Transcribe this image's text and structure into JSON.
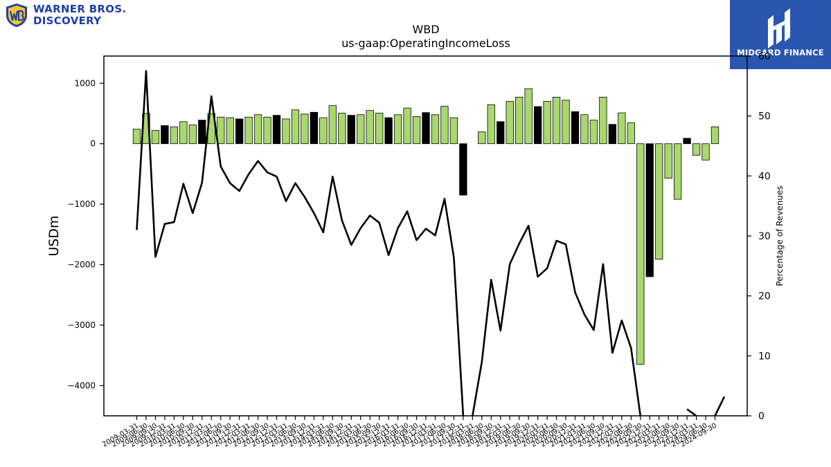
{
  "brand": {
    "company_line1": "WARNER BROS.",
    "company_line2": "DISCOVERY",
    "publisher": "MIDGARD FINANCE"
  },
  "chart_data": {
    "type": "bar",
    "title": "WBD",
    "subtitle": "us-gaap:OperatingIncomeLoss",
    "ylabel": "USDm",
    "y2label": "Percentage of Revenues",
    "ylim": [
      -4500,
      1450
    ],
    "y2lim": [
      0,
      60
    ],
    "yticks": [
      1000,
      0,
      -1000,
      -2000,
      -3000,
      -4000
    ],
    "y2ticks": [
      60,
      50,
      40,
      30,
      20,
      10,
      0
    ],
    "colors": {
      "bar_default": "#a8d86e",
      "bar_highlight": "#000000",
      "line": "#000000",
      "axis": "#000000"
    },
    "categories": [
      "2009-03-31",
      "2009-06-30",
      "2009-09-30",
      "2009-12-31",
      "2010-03-31",
      "2010-06-30",
      "2010-09-30",
      "2010-12-31",
      "2011-03-31",
      "2011-06-30",
      "2011-09-30",
      "2011-12-31",
      "2012-03-31",
      "2012-06-30",
      "2012-09-30",
      "2012-12-31",
      "2013-03-31",
      "2013-06-30",
      "2013-09-30",
      "2013-12-31",
      "2014-03-31",
      "2014-06-30",
      "2014-09-30",
      "2014-12-31",
      "2015-03-31",
      "2015-06-30",
      "2015-09-30",
      "2015-12-31",
      "2016-03-31",
      "2016-06-30",
      "2016-09-30",
      "2016-12-31",
      "2017-03-31",
      "2017-06-30",
      "2017-09-30",
      "2017-12-31",
      "2018-03-31",
      "2018-06-30",
      "2018-09-30",
      "2018-12-31",
      "2019-03-31",
      "2019-06-30",
      "2019-09-30",
      "2019-12-31",
      "2020-03-31",
      "2020-06-30",
      "2020-09-30",
      "2020-12-31",
      "2021-03-31",
      "2021-06-30",
      "2021-09-30",
      "2021-12-31",
      "2022-03-31",
      "2022-06-30",
      "2022-09-30",
      "2022-12-31",
      "2023-03-31",
      "2023-06-30",
      "2023-09-30",
      "2023-12-31",
      "2024-03-31",
      "2024-06-30",
      "2024-09-30"
    ],
    "xtick_labels": [
      "2009-03-31",
      "2009-06-30",
      "2009-09-30",
      "2009-12-31",
      "2010-03-31",
      "2010-06-30",
      "2010-09-30",
      "2010-12-31",
      "2011-03-31",
      "2011-06-30",
      "2011-09-30",
      "2011-12-31",
      "2012-03-31",
      "2012-06-30",
      "2012-09-30",
      "2012-12-31",
      "2013-03-31",
      "2013-06-30",
      "2013-09-30",
      "2013-12-31",
      "2014-03-31",
      "2014-06-30",
      "2014-09-30",
      "2014-12-31",
      "2015-03-31",
      "2015-06-30",
      "2015-09-30",
      "2015-12-31",
      "2016-03-31",
      "2016-06-30",
      "2016-09-30",
      "2016-12-31",
      "2017-03-31",
      "2017-06-30",
      "2017-09-30",
      "2017-12-31",
      "2018-03-31",
      "2018-06-30",
      "2018-09-30",
      "2018-12-31",
      "2019-03-31",
      "2019-06-30",
      "2019-09-30",
      "2019-12-31",
      "2020-03-31",
      "2020-06-30",
      "2020-09-30",
      "2020-12-31",
      "2021-03-31",
      "2021-06-30",
      "2021-09-30",
      "2021-12-31",
      "2022-03-31",
      "2022-06-30",
      "2022-09-30",
      "2022-12-31",
      "2023-03-31",
      "2023-06-30",
      "2023-09-30",
      "2023-12-31",
      "2024-03-31",
      "2024-06-30",
      "2024-09-30"
    ],
    "series": [
      {
        "type": "bar",
        "axis": "left",
        "values": [
          240,
          500,
          220,
          300,
          280,
          365,
          310,
          390,
          500,
          440,
          430,
          410,
          440,
          480,
          440,
          470,
          410,
          560,
          490,
          520,
          430,
          630,
          505,
          470,
          480,
          550,
          505,
          430,
          480,
          590,
          450,
          515,
          480,
          620,
          430,
          -850,
          null,
          195,
          645,
          365,
          700,
          770,
          910,
          615,
          700,
          770,
          720,
          530,
          480,
          390,
          770,
          320,
          510,
          345,
          -3650,
          -2200,
          -1910,
          -570,
          -920,
          90,
          -190,
          -270,
          280
        ],
        "highlight": [
          false,
          false,
          false,
          true,
          false,
          false,
          false,
          true,
          false,
          false,
          false,
          true,
          false,
          false,
          false,
          true,
          false,
          false,
          false,
          true,
          false,
          false,
          false,
          true,
          false,
          false,
          false,
          true,
          false,
          false,
          false,
          true,
          false,
          false,
          false,
          true,
          false,
          false,
          false,
          true,
          false,
          false,
          false,
          true,
          false,
          false,
          false,
          true,
          false,
          false,
          false,
          true,
          false,
          false,
          false,
          true,
          false,
          false,
          false,
          true,
          false,
          false,
          false
        ]
      },
      {
        "type": "line",
        "axis": "right",
        "segments": [
          {
            "start": 0,
            "values": [
              31,
              57.5,
              26.5,
              32,
              32.3,
              38.7,
              33.8,
              38.9,
              53.3,
              41.6,
              38.8,
              37.5,
              40.3,
              42.5,
              40.6,
              39.9,
              35.8,
              38.8,
              36.5,
              33.8,
              30.6,
              39.9,
              32.6,
              28.5,
              31.3,
              33.4,
              32.2,
              26.8,
              31.3,
              34.1,
              29.3,
              31.2,
              30.1,
              36.2,
              26.4,
              0
            ]
          },
          {
            "start": 36,
            "values": [
              0,
              9,
              22.7,
              14.2,
              25.3,
              28.7,
              31.7,
              23.2,
              24.6,
              29.2,
              28.6,
              20.6,
              16.9,
              14.3,
              25.3,
              10.5,
              15.9,
              11.3,
              0
            ]
          },
          {
            "start": 59,
            "values": [
              1.1,
              0
            ]
          },
          {
            "start": 62,
            "values": [
              0,
              3.2
            ]
          }
        ]
      }
    ]
  }
}
